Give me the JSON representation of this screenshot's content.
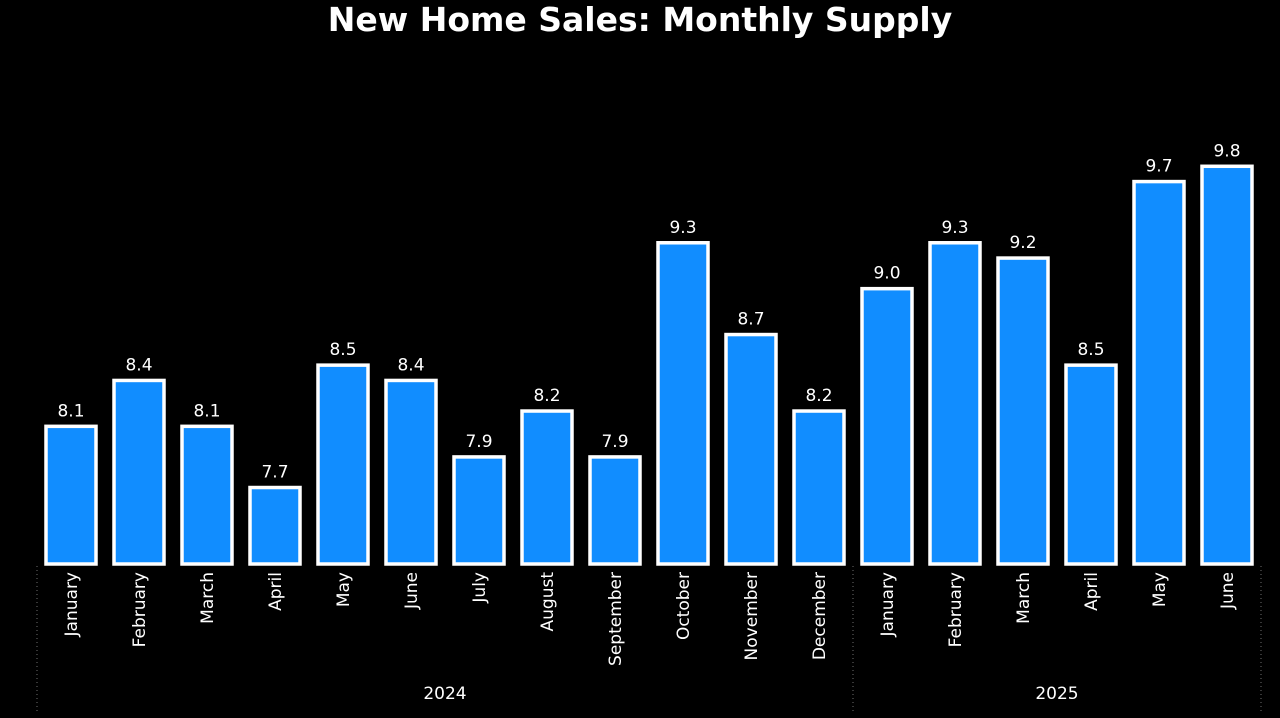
{
  "colors": {
    "background": "#000000",
    "bar_fill": "#118DFF",
    "bar_stroke": "#FFFFFF",
    "text": "#FFFFFF",
    "separator": "#6E6E6E"
  },
  "chart_data": {
    "type": "bar",
    "title": "New Home Sales: Monthly Supply",
    "xlabel": "",
    "ylabel": "",
    "ylim": [
      7.2,
      10.4
    ],
    "grid": false,
    "legend": "none",
    "groups": [
      {
        "label": "2024",
        "count": 12
      },
      {
        "label": "2025",
        "count": 6
      }
    ],
    "categories": [
      "January",
      "February",
      "March",
      "April",
      "May",
      "June",
      "July",
      "August",
      "September",
      "October",
      "November",
      "December",
      "January",
      "February",
      "March",
      "April",
      "May",
      "June"
    ],
    "values": [
      8.1,
      8.4,
      8.1,
      7.7,
      8.5,
      8.4,
      7.9,
      8.2,
      7.9,
      9.3,
      8.7,
      8.2,
      9.0,
      9.3,
      9.2,
      8.5,
      9.7,
      9.8
    ],
    "data_labels": [
      "8.1",
      "8.4",
      "8.1",
      "7.7",
      "8.5",
      "8.4",
      "7.9",
      "8.2",
      "7.9",
      "9.3",
      "8.7",
      "8.2",
      "9.0",
      "9.3",
      "9.2",
      "8.5",
      "9.7",
      "9.8"
    ]
  }
}
